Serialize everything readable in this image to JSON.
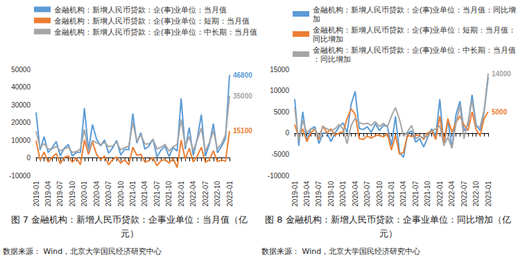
{
  "chart_data": [
    {
      "type": "line",
      "title": "图 7 金融机构：新增人民币贷款：企事业单位：当月值（亿元）",
      "source": "数据来源：  Wind，北京大学国民经济研究中心",
      "categories": [
        "2019-01",
        null,
        null,
        "2019-04",
        null,
        null,
        "2019-07",
        null,
        null,
        "2019-10",
        null,
        null,
        "2020-01",
        null,
        null,
        "2020-04",
        null,
        null,
        "2020-07",
        null,
        null,
        "2020-10",
        null,
        null,
        "2021-01",
        null,
        null,
        "2021-04",
        null,
        null,
        "2021-07",
        null,
        null,
        "2021-10",
        null,
        null,
        "2022-01",
        null,
        null,
        "2022-04",
        null,
        null,
        "2022-07",
        null,
        null,
        "2022-10",
        null,
        null,
        "2023-01"
      ],
      "series": [
        {
          "name": "金融机构：新增人民币贷款：企(事)业单位：当月值",
          "color": "#5b9bd5",
          "values": [
            25600,
            4400,
            12000,
            3000,
            5700,
            9300,
            1100,
            5500,
            7600,
            1000,
            3000,
            3100,
            28000,
            4500,
            18800,
            10600,
            6800,
            10100,
            2600,
            5700,
            9800,
            1600,
            4800,
            4600,
            25000,
            8400,
            14200,
            4900,
            6700,
            10600,
            450,
            4400,
            6500,
            620,
            5800,
            3800,
            33700,
            4900,
            17100,
            1400,
            11000,
            24400,
            1000,
            7600,
            19300,
            2900,
            6400,
            11000,
            46800
          ]
        },
        {
          "name": "金融机构：新增人民币贷款：企(事)业单位：短期：当月值",
          "color": "#ed7d31",
          "values": [
            9700,
            -1400,
            3300,
            -2400,
            300,
            2500,
            -3300,
            200,
            1100,
            -2500,
            -100,
            -3900,
            10000,
            2000,
            9000,
            2000,
            -1000,
            1000,
            -4000,
            -1000,
            500,
            -3000,
            -1000,
            -4000,
            6000,
            1500,
            2000,
            -2500,
            -1500,
            200,
            -4500,
            -1600,
            -1000,
            -3000,
            -400,
            -5500,
            10000,
            -800,
            5400,
            -2300,
            1000,
            6000,
            -2600,
            -1000,
            4000,
            -2200,
            -1000,
            -2000,
            15100
          ]
        },
        {
          "name": "金融机构：新增人民币贷款：企(事)业单位：中长期：当月值",
          "color": "#a5a5a5",
          "values": [
            15000,
            6000,
            8000,
            5000,
            5000,
            6500,
            4000,
            5000,
            6000,
            3000,
            3500,
            5000,
            16000,
            3500,
            9800,
            8500,
            7500,
            8600,
            6300,
            6800,
            8700,
            4500,
            5800,
            6500,
            20000,
            9500,
            13000,
            7800,
            7800,
            10400,
            5000,
            6000,
            7600,
            3700,
            6300,
            7500,
            21700,
            6700,
            12000,
            4200,
            10000,
            16900,
            3700,
            8600,
            15300,
            5100,
            7800,
            12900,
            35000
          ]
        }
      ],
      "annotations": [
        {
          "series": "金融机构：新增人民币贷款：企(事)业单位：当月值",
          "x": "2023-01",
          "text": "46800"
        },
        {
          "series": "金融机构：新增人民币贷款：企(事)业单位：中长期：当月值",
          "x": "2023-01",
          "text": "35000"
        },
        {
          "series": "金融机构：新增人民币贷款：企(事)业单位：短期：当月值",
          "x": "2023-01",
          "text": "15100"
        }
      ],
      "ylim": [
        -10000,
        50000
      ],
      "yticks": [
        -10000,
        0,
        10000,
        20000,
        30000,
        40000,
        50000
      ],
      "grid": false,
      "legend": "top"
    },
    {
      "type": "line",
      "title": "图 8 金融机构：新增人民币贷款：企事业单位：同比增加（亿元）",
      "source": "数据来源：  Wind，北京大学国民经济研究中心",
      "categories": [
        "2019-01",
        null,
        null,
        "2019-04",
        null,
        null,
        "2019-07",
        null,
        null,
        "2019-10",
        null,
        null,
        "2020-01",
        null,
        null,
        "2020-04",
        null,
        null,
        "2020-07",
        null,
        null,
        "2020-10",
        null,
        null,
        "2021-01",
        null,
        null,
        "2021-04",
        null,
        null,
        "2021-07",
        null,
        null,
        "2021-10",
        null,
        null,
        "2022-01",
        null,
        null,
        "2022-04",
        null,
        null,
        "2022-07",
        null,
        null,
        "2022-10",
        null,
        null,
        "2023-01"
      ],
      "series": [
        {
          "name": "金融机构：新增人民币贷款：企(事)业单位：当月值：同比增加",
          "color": "#5b9bd5",
          "values": [
            8000,
            -3000,
            5000,
            -2000,
            1000,
            1500,
            -2500,
            0,
            0,
            -2000,
            0,
            1500,
            2400,
            100,
            6800,
            9800,
            1100,
            800,
            1500,
            200,
            2200,
            600,
            1800,
            1500,
            -3000,
            3900,
            -4600,
            -5700,
            -100,
            500,
            -2150,
            -1300,
            -3300,
            -980,
            1000,
            -800,
            8000,
            -3000,
            3000,
            -3500,
            4300,
            7500,
            500,
            2000,
            9000,
            2000,
            600,
            5000,
            13100
          ]
        },
        {
          "name": "金融机构：新增人民币贷款：企(事)业单位：短期：当月值：同比增加",
          "color": "#ed7d31",
          "values": [
            2000,
            -1000,
            1000,
            -2000,
            0,
            1000,
            -1500,
            1700,
            0,
            1000,
            -500,
            0,
            300,
            3400,
            5700,
            4400,
            -1300,
            -1500,
            -700,
            -1200,
            -600,
            -500,
            -900,
            -100,
            -4000,
            -500,
            -5000,
            -4500,
            -500,
            -800,
            -500,
            -600,
            -1500,
            0,
            600,
            -1500,
            4000,
            -2300,
            3400,
            200,
            2500,
            4000,
            1900,
            600,
            5000,
            800,
            -600,
            3500,
            5000
          ]
        },
        {
          "name": "金融机构：新增人民币贷款：企(事)业单位：中长期：当月值：同比增加",
          "color": "#a5a5a5",
          "values": [
            6000,
            -2000,
            3000,
            0,
            1000,
            1000,
            -1000,
            1500,
            1000,
            500,
            1000,
            2000,
            1000,
            -2500,
            1800,
            3500,
            2500,
            2100,
            2300,
            1800,
            2700,
            1500,
            2300,
            1500,
            4000,
            6000,
            3200,
            -700,
            300,
            1800,
            -1300,
            -800,
            -1100,
            -800,
            500,
            1000,
            1700,
            -2800,
            -1000,
            -3600,
            2200,
            6500,
            -1300,
            2600,
            7700,
            1400,
            1500,
            5400,
            14000
          ]
        }
      ],
      "annotations": [
        {
          "series": "金融机构：新增人民币贷款：企(事)业单位：中长期：当月值：同比增加",
          "x": "2023-01",
          "text": "14000"
        },
        {
          "series": "金融机构：新增人民币贷款：企(事)业单位：短期：当月值：同比增加",
          "x": "2023-01",
          "text": "5000"
        }
      ],
      "ylim": [
        -10000,
        15000
      ],
      "yticks": [
        -10000,
        -5000,
        0,
        5000,
        10000,
        15000
      ],
      "grid": false,
      "legend": "top"
    }
  ]
}
